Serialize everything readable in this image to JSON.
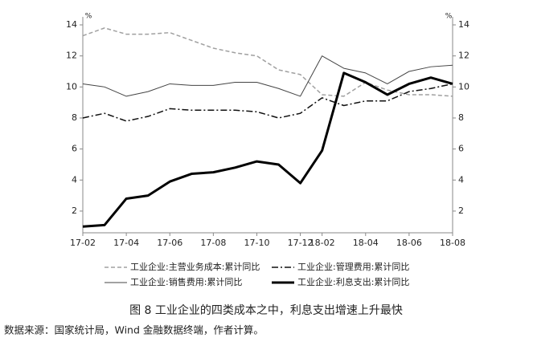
{
  "chart_data": {
    "type": "line",
    "caption": "图 8 工业企业的四类成本之中，利息支出增速上升最快",
    "source": "数据来源：国家统计局，Wind 金融数据终端，作者计算。",
    "y_unit": "%",
    "y2_unit": "%",
    "categories": [
      "17-02",
      null,
      "17-04",
      null,
      "17-06",
      null,
      "17-08",
      null,
      "17-10",
      null,
      "17-12",
      "18-02",
      null,
      "18-04",
      null,
      "18-06",
      null,
      "18-08"
    ],
    "ylim": [
      0.6,
      14
    ],
    "yticks": [
      2,
      4,
      6,
      8,
      10,
      12,
      14
    ],
    "y2lim": [
      0.6,
      14
    ],
    "y2ticks": [
      2,
      4,
      6,
      8,
      10,
      12,
      14
    ],
    "series": [
      {
        "name": "工业企业:主营业务成本:累计同比",
        "color": "#a0a0a0",
        "dash": "dashed",
        "width": 1.5,
        "values": [
          13.3,
          13.8,
          13.4,
          13.4,
          13.5,
          13.0,
          12.5,
          12.2,
          12.0,
          11.1,
          10.8,
          9.5,
          9.4,
          10.3,
          9.8,
          9.5,
          9.5,
          9.4
        ]
      },
      {
        "name": "工业企业:管理费用:累计同比",
        "color": "#111111",
        "dash": "dashdot",
        "width": 1.5,
        "values": [
          8.0,
          8.3,
          7.8,
          8.1,
          8.6,
          8.5,
          8.5,
          8.5,
          8.4,
          8.0,
          8.3,
          9.3,
          8.8,
          9.1,
          9.1,
          9.7,
          9.9,
          10.2
        ]
      },
      {
        "name": "工业企业:销售费用:累计同比",
        "color": "#444444",
        "dash": "solid",
        "width": 1,
        "values": [
          10.2,
          10.0,
          9.4,
          9.7,
          10.2,
          10.1,
          10.1,
          10.3,
          10.3,
          9.9,
          9.4,
          12.0,
          11.2,
          10.9,
          10.2,
          11.0,
          11.3,
          11.4
        ]
      },
      {
        "name": "工业企业:利息支出:累计同比",
        "color": "#000000",
        "dash": "solid",
        "width": 3,
        "values": [
          1.0,
          1.1,
          2.8,
          3.0,
          3.9,
          4.4,
          4.5,
          4.8,
          5.2,
          5.0,
          3.8,
          5.9,
          10.9,
          10.3,
          9.5,
          10.2,
          10.6,
          10.2
        ]
      }
    ]
  }
}
